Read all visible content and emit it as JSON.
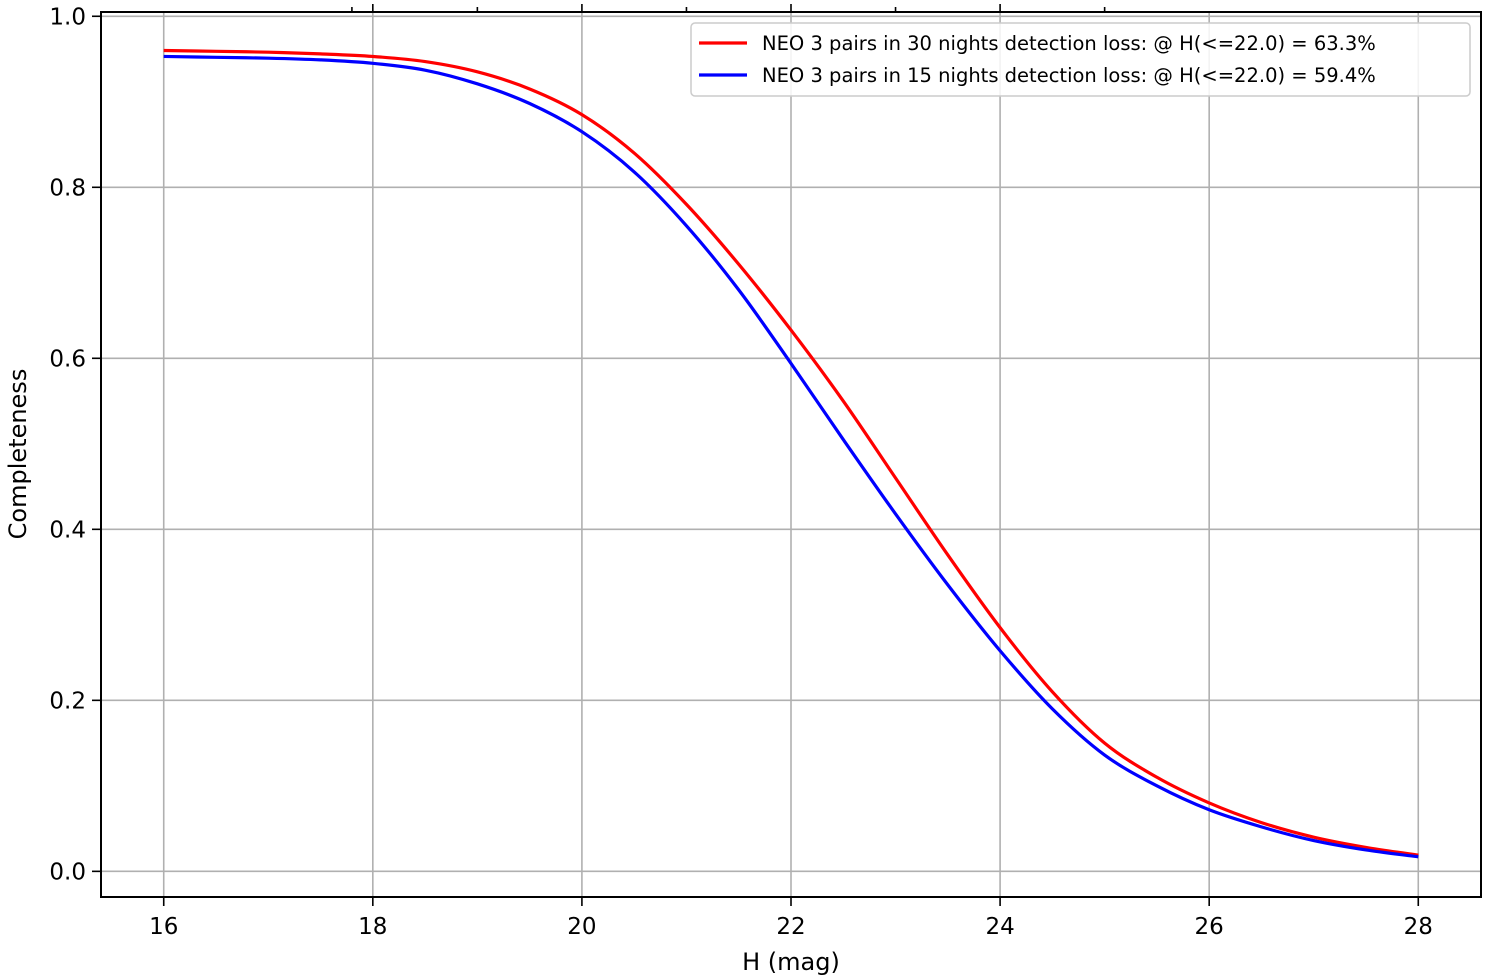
{
  "chart_data": {
    "type": "line",
    "xlabel": "H (mag)",
    "ylabel": "Completeness",
    "xlim": [
      15.4,
      28.6
    ],
    "ylim": [
      -0.03,
      1.005
    ],
    "xticks": [
      16,
      18,
      20,
      22,
      24,
      26,
      28
    ],
    "xtick_labels": [
      "16",
      "18",
      "20",
      "22",
      "24",
      "26",
      "28"
    ],
    "yticks": [
      0.0,
      0.2,
      0.4,
      0.6,
      0.8,
      1.0
    ],
    "ytick_labels": [
      "0.0",
      "0.2",
      "0.4",
      "0.6",
      "0.8",
      "1.0"
    ],
    "top_minor_ticks": [
      17.8,
      18.0,
      19.0,
      20.0,
      21.0,
      22.0,
      23.0,
      24.0,
      25.0
    ],
    "grid": true,
    "legend_position": "top-right",
    "series": [
      {
        "name": "NEO 3 pairs in 30 nights detection loss: @ H(<=22.0) = 63.3%",
        "color": "#ff0000",
        "x": [
          16,
          16.5,
          17,
          17.5,
          18,
          18.5,
          19,
          19.5,
          20,
          20.5,
          21,
          21.5,
          22,
          22.5,
          23,
          23.5,
          24,
          24.5,
          25,
          25.5,
          26,
          26.5,
          27,
          27.5,
          28
        ],
        "y": [
          0.96,
          0.959,
          0.958,
          0.956,
          0.953,
          0.947,
          0.935,
          0.915,
          0.885,
          0.84,
          0.78,
          0.71,
          0.633,
          0.55,
          0.46,
          0.37,
          0.285,
          0.21,
          0.15,
          0.11,
          0.08,
          0.057,
          0.04,
          0.028,
          0.019
        ]
      },
      {
        "name": "NEO 3 pairs in 15 nights detection loss: @ H(<=22.0) = 59.4%",
        "color": "#0000ff",
        "x": [
          16,
          16.5,
          17,
          17.5,
          18,
          18.5,
          19,
          19.5,
          20,
          20.5,
          21,
          21.5,
          22,
          22.5,
          23,
          23.5,
          24,
          24.5,
          25,
          25.5,
          26,
          26.5,
          27,
          27.5,
          28
        ],
        "y": [
          0.953,
          0.952,
          0.951,
          0.949,
          0.945,
          0.937,
          0.921,
          0.898,
          0.865,
          0.818,
          0.755,
          0.68,
          0.594,
          0.505,
          0.418,
          0.335,
          0.258,
          0.19,
          0.136,
          0.1,
          0.072,
          0.052,
          0.036,
          0.025,
          0.017
        ]
      }
    ]
  }
}
